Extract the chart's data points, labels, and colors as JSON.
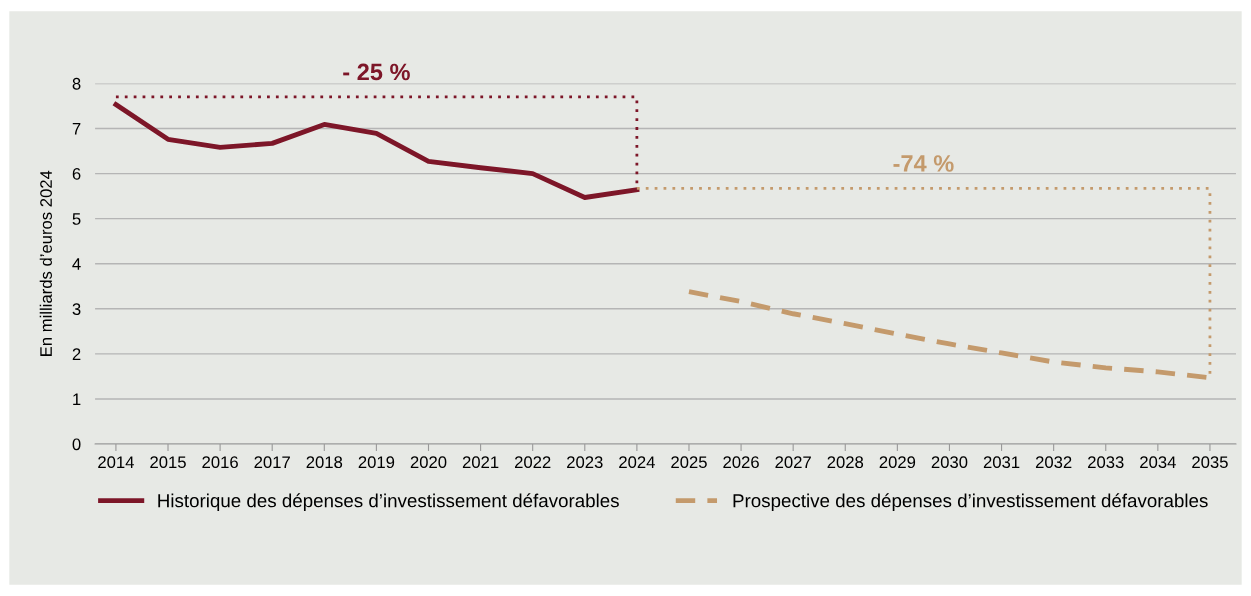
{
  "chart_data": {
    "type": "line",
    "ylabel": "En milliards d’euros 2024",
    "series": [
      {
        "name": "Historique des dépenses d’investissement défavorables",
        "color": "#7d1628",
        "line_style": "solid",
        "x": [
          2014,
          2015,
          2016,
          2017,
          2018,
          2019,
          2020,
          2021,
          2022,
          2023,
          2024
        ],
        "values": [
          7.53,
          6.76,
          6.58,
          6.67,
          7.09,
          6.89,
          6.27,
          6.13,
          6.0,
          5.47,
          5.64
        ]
      },
      {
        "name": "Prospective des dépenses d’investissement défavorables",
        "color": "#c49a6c",
        "line_style": "dashed",
        "x": [
          2025,
          2026,
          2027,
          2028,
          2029,
          2030,
          2031,
          2032,
          2033,
          2034,
          2035
        ],
        "values": [
          3.38,
          3.16,
          2.89,
          2.67,
          2.44,
          2.22,
          2.02,
          1.82,
          1.69,
          1.6,
          1.47
        ]
      },
      {
        "color": "#7d1628",
        "line_style": "dotted",
        "x": [
          2014,
          2024,
          2024
        ],
        "values": [
          7.7,
          7.7,
          5.64
        ]
      },
      {
        "color": "#c49a6c",
        "line_style": "dotted",
        "x": [
          2024,
          2035,
          2035
        ],
        "values": [
          5.67,
          5.67,
          1.5
        ]
      }
    ],
    "annotations": [
      "- 25 %",
      "-74 %"
    ],
    "xlim": [
      2013.6,
      2035.5
    ],
    "xticks": [
      2014,
      2015,
      2016,
      2017,
      2018,
      2019,
      2020,
      2021,
      2022,
      2023,
      2024,
      2025,
      2026,
      2027,
      2028,
      2029,
      2030,
      2031,
      2032,
      2033,
      2034,
      2035
    ],
    "ylim": [
      0,
      8
    ],
    "yticks": [
      0,
      1,
      2,
      3,
      4,
      5,
      6,
      7,
      8
    ],
    "grid": "y",
    "legend": "bottom left",
    "marker": "none"
  }
}
